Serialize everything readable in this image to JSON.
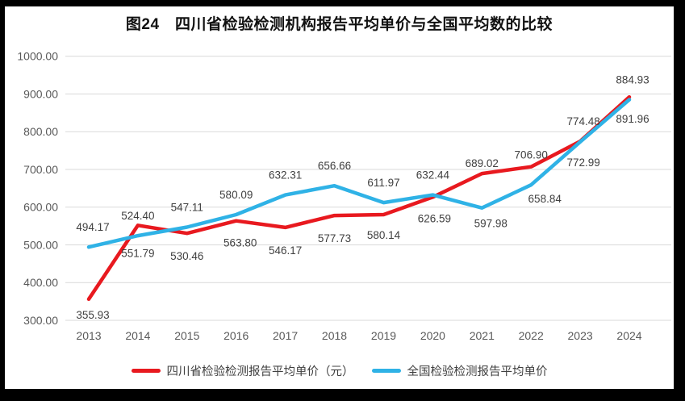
{
  "title": "图24　四川省检验检测机构报告平均单价与全国平均数的比较",
  "colors": {
    "sichuan_red": "#e8191f",
    "national_blue": "#2fb2e6",
    "gridline": "#d9d9d9",
    "axis_text": "#595959",
    "data_label_text": "#3f3f3f",
    "frame": "#000000",
    "background": "#ffffff"
  },
  "chart_data": {
    "type": "line",
    "x": [
      2013,
      2014,
      2015,
      2016,
      2017,
      2018,
      2019,
      2020,
      2021,
      2022,
      2023,
      2024
    ],
    "series": [
      {
        "id": "sichuan",
        "name": "四川省检验检测报告平均单价（元）",
        "color": "#e8191f",
        "values": [
          355.93,
          551.79,
          530.46,
          563.8,
          546.17,
          577.73,
          580.14,
          626.59,
          689.02,
          706.9,
          774.48,
          891.96
        ],
        "label_layout": [
          [
            "below",
            5,
            0
          ],
          [
            "below",
            0,
            15
          ],
          [
            "below",
            0,
            9
          ],
          [
            "below",
            5,
            8
          ],
          [
            "below",
            0,
            9
          ],
          [
            "below",
            0,
            9
          ],
          [
            "below",
            0,
            6
          ],
          [
            "below",
            2,
            7
          ],
          [
            "above",
            0,
            12
          ],
          [
            "above",
            0,
            10
          ],
          [
            "above",
            4,
            0
          ],
          [
            "below",
            4,
            8
          ]
        ]
      },
      {
        "id": "national",
        "name": "全国检验检测报告平均单价",
        "color": "#2fb2e6",
        "values": [
          494.17,
          524.4,
          547.11,
          580.09,
          632.31,
          656.66,
          611.97,
          632.44,
          597.98,
          658.84,
          772.99,
          884.93
        ],
        "label_layout": [
          [
            "above",
            5,
            0
          ],
          [
            "above",
            0,
            0
          ],
          [
            "above",
            0,
            0
          ],
          [
            "above",
            0,
            0
          ],
          [
            "above",
            0,
            0
          ],
          [
            "above",
            0,
            0
          ],
          [
            "above",
            0,
            0
          ],
          [
            "above",
            0,
            0
          ],
          [
            "below",
            11,
            0
          ],
          [
            "below",
            17,
            -2
          ],
          [
            "below",
            4,
            6
          ],
          [
            "above",
            4,
            0
          ]
        ]
      }
    ],
    "ylim": [
      300,
      1000
    ],
    "ytick_step": 100,
    "ytick_labels": [
      "300.00",
      "400.00",
      "500.00",
      "600.00",
      "700.00",
      "800.00",
      "900.00",
      "1000.00"
    ],
    "value_decimals": 2,
    "grid": true,
    "legend_position": "bottom"
  }
}
